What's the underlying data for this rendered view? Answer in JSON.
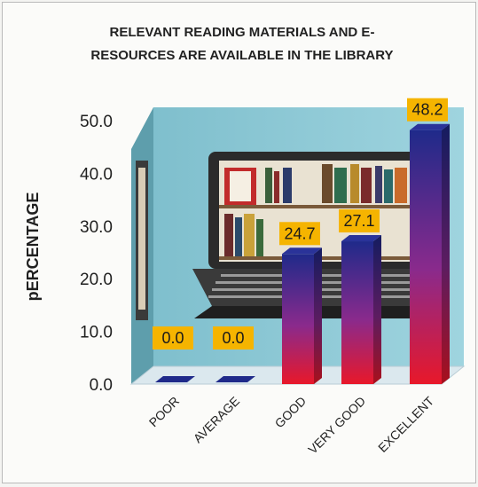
{
  "chart_data": {
    "type": "bar",
    "title": "RELEVANT READING MATERIALS AND E- RESOURCES ARE AVAILABLE IN THE LIBRARY",
    "title_lines": [
      "RELEVANT READING MATERIALS AND  E-",
      "RESOURCES ARE AVAILABLE IN THE LIBRARY"
    ],
    "ylabel": "pERCENTAGE",
    "xlabel": "",
    "categories": [
      "POOR",
      "AVERAGE",
      "GOOD",
      "VERY GOOD",
      "EXCELLENT"
    ],
    "values": [
      0.0,
      0.0,
      24.7,
      27.1,
      48.2
    ],
    "value_labels": [
      "0.0",
      "0.0",
      "24.7",
      "27.1",
      "48.2"
    ],
    "yticks": [
      "0.0",
      "10.0",
      "20.0",
      "30.0",
      "40.0",
      "50.0"
    ],
    "ylim": [
      0,
      50
    ],
    "grid": false,
    "legend": "none",
    "style": "3d-bar",
    "colors": {
      "bar_top": "#1f2a8a",
      "bar_bottom": "#e8182a",
      "wall": "#8ecbd8",
      "floor": "#d9e7ee",
      "label_box": "#f5b400"
    },
    "background": "laptop-with-books-illustration"
  }
}
